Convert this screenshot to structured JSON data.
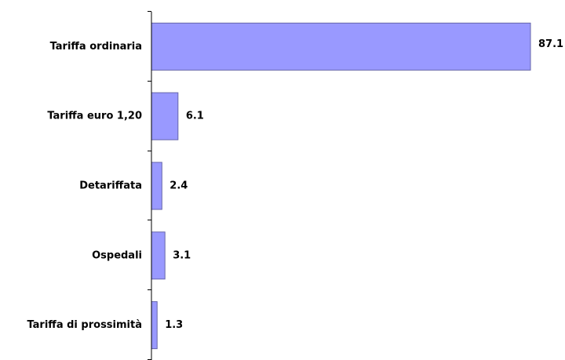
{
  "chart_data": {
    "type": "bar",
    "orientation": "horizontal",
    "categories": [
      "Tariffa ordinaria",
      "Tariffa euro 1,20",
      "Detariffata",
      "Ospedali",
      "Tariffa di prossimità"
    ],
    "values": [
      87.1,
      6.1,
      2.4,
      3.1,
      1.3
    ],
    "value_labels": [
      "87.1",
      "6.1",
      "2.4",
      "3.1",
      "1.3"
    ],
    "title": "",
    "xlabel": "",
    "ylabel": "",
    "xlim": [
      0,
      87.1
    ],
    "grid": false,
    "legend": "none",
    "colors": {
      "bar_fill": "#9999ff",
      "bar_stroke": "#6666aa",
      "axis": "#000000"
    }
  }
}
